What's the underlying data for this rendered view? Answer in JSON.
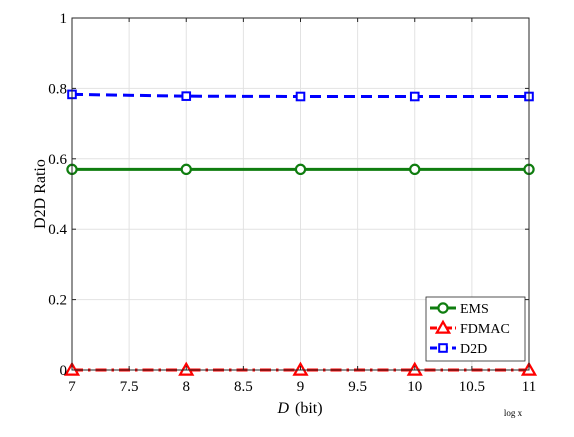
{
  "chart_data": {
    "type": "line",
    "title": "",
    "xlabel": {
      "symbol": "D",
      "unit": "(bit)"
    },
    "ylabel": "D2D Ratio",
    "corner_note": "log x",
    "xlim": [
      7,
      11
    ],
    "ylim": [
      0,
      1
    ],
    "xticks": [
      7,
      7.5,
      8,
      8.5,
      9,
      9.5,
      10,
      10.5,
      11
    ],
    "xtick_labels": [
      "7",
      "7.5",
      "8",
      "8.5",
      "9",
      "9.5",
      "10",
      "10.5",
      "11"
    ],
    "yticks": [
      0,
      0.2,
      0.4,
      0.6,
      0.8,
      1
    ],
    "ytick_labels": [
      "0",
      "0.2",
      "0.4",
      "0.6",
      "0.8",
      "1"
    ],
    "grid": true,
    "legend_position": "bottom-right",
    "x": [
      7,
      8,
      9,
      10,
      11
    ],
    "series": [
      {
        "name": "EMS",
        "values": [
          0.57,
          0.57,
          0.57,
          0.57,
          0.57
        ],
        "color": "#0f7d0f",
        "dash": "solid",
        "marker": "circle"
      },
      {
        "name": "FDMAC",
        "values": [
          0.0,
          0.0,
          0.0,
          0.0,
          0.0
        ],
        "color": "#ff0000",
        "dash": "dash-dot",
        "marker": "triangle"
      },
      {
        "name": "D2D",
        "values": [
          0.783,
          0.778,
          0.777,
          0.777,
          0.777
        ],
        "color": "#0000ff",
        "dash": "dashed",
        "marker": "square"
      }
    ]
  }
}
